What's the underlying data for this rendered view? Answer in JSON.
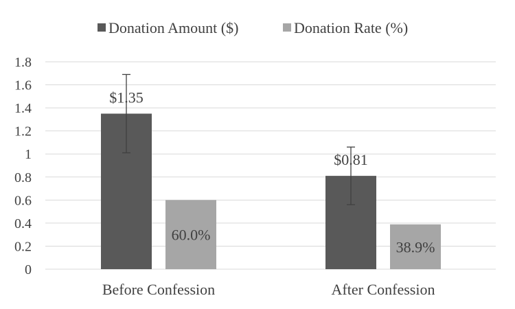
{
  "chart_data": {
    "type": "bar",
    "categories": [
      "Before Confession",
      "After Confession"
    ],
    "series": [
      {
        "name": "Donation Amount ($)",
        "values": [
          1.35,
          0.81
        ],
        "labels": [
          "$1.35",
          "$0.81"
        ],
        "error_low": [
          1.01,
          0.56
        ],
        "error_high": [
          1.69,
          1.06
        ],
        "color": "#595959"
      },
      {
        "name": "Donation Rate (%)",
        "values": [
          0.6,
          0.389
        ],
        "labels": [
          "60.0%",
          "38.9%"
        ],
        "color": "#a6a6a6"
      }
    ],
    "y_ticks": [
      "0",
      "0.2",
      "0.4",
      "0.6",
      "0.8",
      "1",
      "1.2",
      "1.4",
      "1.6",
      "1.8"
    ],
    "ylim": [
      0,
      1.8
    ],
    "grid": true,
    "legend_position": "top-center"
  }
}
